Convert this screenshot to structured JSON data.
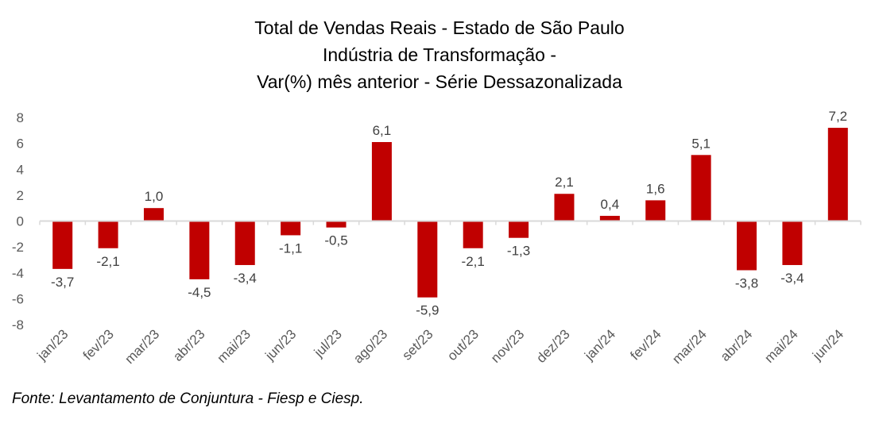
{
  "chart_data": {
    "type": "bar",
    "title": [
      "Total de Vendas Reais - Estado de São Paulo",
      "Indústria de Transformação -",
      "Var(%) mês anterior - Série Dessazonalizada"
    ],
    "xlabel": "",
    "ylabel": "",
    "ylim": [
      -8,
      8
    ],
    "yticks": [
      8,
      6,
      4,
      2,
      0,
      -2,
      -4,
      -6,
      -8
    ],
    "grid": false,
    "legend": "none",
    "categories": [
      "jan/23",
      "fev/23",
      "mar/23",
      "abr/23",
      "mai/23",
      "jun/23",
      "jul/23",
      "ago/23",
      "set/23",
      "out/23",
      "nov/23",
      "dez/23",
      "jan/24",
      "fev/24",
      "mar/24",
      "abr/24",
      "mai/24",
      "jun/24"
    ],
    "values": [
      -3.7,
      -2.1,
      1.0,
      -4.5,
      -3.4,
      -1.1,
      -0.5,
      6.1,
      -5.9,
      -2.1,
      -1.3,
      2.1,
      0.4,
      1.6,
      5.1,
      -3.8,
      -3.4,
      7.2
    ],
    "data_labels": [
      "-3,7",
      "-2,1",
      "1,0",
      "-4,5",
      "-3,4",
      "-1,1",
      "-0,5",
      "6,1",
      "-5,9",
      "-2,1",
      "-1,3",
      "2,1",
      "0,4",
      "1,6",
      "5,1",
      "-3,8",
      "-3,4",
      "7,2"
    ],
    "colors": {
      "bar": "#C00000",
      "axis": "#D9D9D9"
    }
  },
  "source": "Fonte: Levantamento de Conjuntura - Fiesp e Ciesp."
}
